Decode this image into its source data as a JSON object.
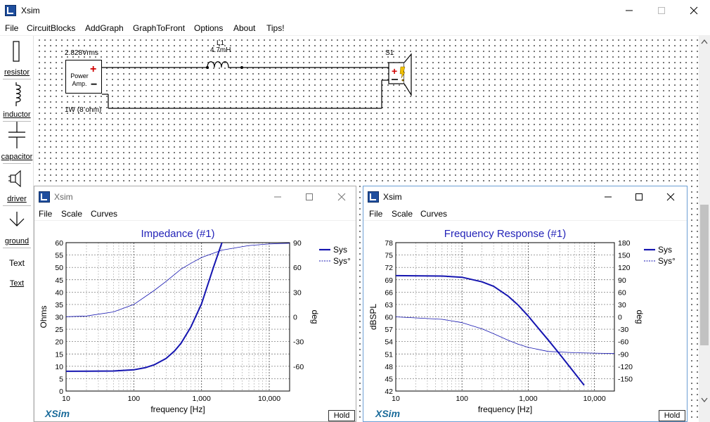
{
  "app": {
    "title": "Xsim",
    "menu": [
      "File",
      "CircuitBlocks",
      "AddGraph",
      "GraphToFront",
      "Options",
      "About",
      "Tips!"
    ]
  },
  "toolbox": {
    "items": [
      {
        "label": "resistor",
        "icon": "resistor-icon"
      },
      {
        "label": "inductor",
        "icon": "inductor-icon"
      },
      {
        "label": "capacitor",
        "icon": "capacitor-icon"
      },
      {
        "label": "driver",
        "icon": "driver-icon"
      },
      {
        "label": "ground",
        "icon": "ground-icon"
      },
      {
        "label": "Text",
        "icon": "text-icon"
      }
    ],
    "text_glyph": "Text"
  },
  "schematic": {
    "amp": {
      "voltage": "2.828Vrms",
      "name_line1": "Power",
      "name_line2": "Amp.",
      "power": "1W (8 ohm)",
      "plus": "+",
      "minus": "−"
    },
    "inductor": {
      "name": "L1",
      "value": "4.7mH"
    },
    "speaker": {
      "name": "S1"
    }
  },
  "impedance_window": {
    "title": "Xsim",
    "menu": [
      "File",
      "Scale",
      "Curves"
    ],
    "brand": "XSim",
    "hold": "Hold"
  },
  "response_window": {
    "title": "Xsim",
    "menu": [
      "File",
      "Scale",
      "Curves"
    ],
    "brand": "XSim",
    "hold": "Hold"
  },
  "chart_data": [
    {
      "type": "line",
      "title": "Impedance (#1)",
      "xlabel": "frequency [Hz]",
      "ylabel": "Ohms",
      "y2label": "deg",
      "xscale": "log",
      "xlim": [
        10,
        20000
      ],
      "ylim": [
        0,
        60
      ],
      "y2lim": [
        -90,
        90
      ],
      "xticks": [
        10,
        100,
        1000,
        10000
      ],
      "xtick_labels": [
        "10",
        "100",
        "1,000",
        "10,000"
      ],
      "yticks": [
        0,
        5,
        10,
        15,
        20,
        25,
        30,
        35,
        40,
        45,
        50,
        55,
        60
      ],
      "y2ticks": [
        90,
        60,
        30,
        0,
        -30,
        -60
      ],
      "legend": [
        "Sys",
        "Sys°"
      ],
      "legend_position": "top-right",
      "grid": true,
      "series": [
        {
          "name": "Sys",
          "axis": "left",
          "style": "thick",
          "x": [
            10,
            50,
            100,
            150,
            200,
            300,
            400,
            500,
            700,
            1000,
            1500,
            2000
          ],
          "y": [
            8.0,
            8.1,
            8.6,
            9.5,
            10.6,
            13.2,
            16.2,
            19.4,
            26.0,
            35.3,
            50.0,
            60.0
          ]
        },
        {
          "name": "Sys°",
          "axis": "right",
          "style": "thin",
          "x": [
            10,
            20,
            50,
            100,
            200,
            300,
            500,
            700,
            1000,
            2000,
            5000,
            10000,
            20000
          ],
          "y": [
            0.2,
            1.0,
            6.0,
            15.0,
            32.0,
            43.0,
            58.0,
            65.0,
            72.0,
            81.0,
            86.5,
            88.5,
            89.3
          ]
        }
      ]
    },
    {
      "type": "line",
      "title": "Frequency Response (#1)",
      "xlabel": "frequency [Hz]",
      "ylabel": "dBSPL",
      "y2label": "deg",
      "xscale": "log",
      "xlim": [
        10,
        20000
      ],
      "ylim": [
        42,
        78
      ],
      "y2lim": [
        -180,
        180
      ],
      "xticks": [
        10,
        100,
        1000,
        10000
      ],
      "xtick_labels": [
        "10",
        "100",
        "1,000",
        "10,000"
      ],
      "yticks": [
        42,
        45,
        48,
        51,
        54,
        57,
        60,
        63,
        66,
        69,
        72,
        75,
        78
      ],
      "y2ticks": [
        180,
        150,
        120,
        90,
        60,
        30,
        0,
        -30,
        -60,
        -90,
        -120,
        -150
      ],
      "legend": [
        "Sys",
        "Sys°"
      ],
      "legend_position": "top-right",
      "grid": true,
      "series": [
        {
          "name": "Sys",
          "axis": "left",
          "style": "thick",
          "x": [
            10,
            50,
            100,
            200,
            300,
            500,
            700,
            1000,
            1500,
            2000,
            3000,
            5000,
            7000
          ],
          "y": [
            70.0,
            69.9,
            69.6,
            68.5,
            67.4,
            65.0,
            62.9,
            60.2,
            56.8,
            54.4,
            50.9,
            46.4,
            43.4
          ]
        },
        {
          "name": "Sys°",
          "axis": "right",
          "style": "thin",
          "x": [
            10,
            50,
            100,
            200,
            300,
            500,
            700,
            1000,
            2000,
            5000,
            10000,
            20000
          ],
          "y": [
            0,
            -6,
            -14,
            -29,
            -41,
            -57,
            -66,
            -74,
            -84,
            -87,
            -88,
            -89
          ]
        }
      ]
    }
  ]
}
